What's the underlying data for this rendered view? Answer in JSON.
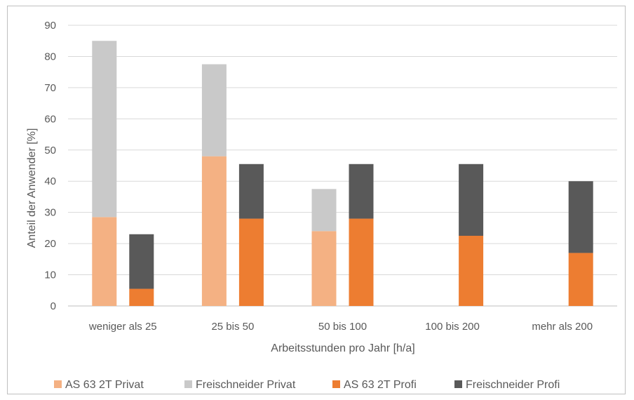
{
  "chart_data": {
    "type": "bar",
    "stacked": true,
    "categories": [
      "weniger als 25",
      "25 bis 50",
      "50 bis 100",
      "100 bis 200",
      "mehr als 200"
    ],
    "groups": [
      {
        "name": "Privat",
        "series": [
          {
            "name": "AS 63 2T Privat",
            "color": "#f4b183",
            "values": [
              28.5,
              48,
              24,
              0,
              0
            ]
          },
          {
            "name": "Freischneider Privat",
            "color": "#c9c9c9",
            "values": [
              56.5,
              29.5,
              13.5,
              0,
              0
            ]
          }
        ]
      },
      {
        "name": "Profi",
        "series": [
          {
            "name": "AS 63 2T Profi",
            "color": "#ed7d31",
            "values": [
              5.5,
              28,
              28,
              22.5,
              17
            ]
          },
          {
            "name": "Freischneider Profi",
            "color": "#595959",
            "values": [
              17.5,
              17.5,
              17.5,
              23,
              23
            ]
          }
        ]
      }
    ],
    "xlabel": "Arbeitsstunden pro Jahr [h/a]",
    "ylabel": "Anteil der Anwender [%]",
    "ylim": [
      0,
      90
    ],
    "yticks": [
      0,
      10,
      20,
      30,
      40,
      50,
      60,
      70,
      80,
      90
    ],
    "grid": true,
    "legend_position": "bottom"
  }
}
